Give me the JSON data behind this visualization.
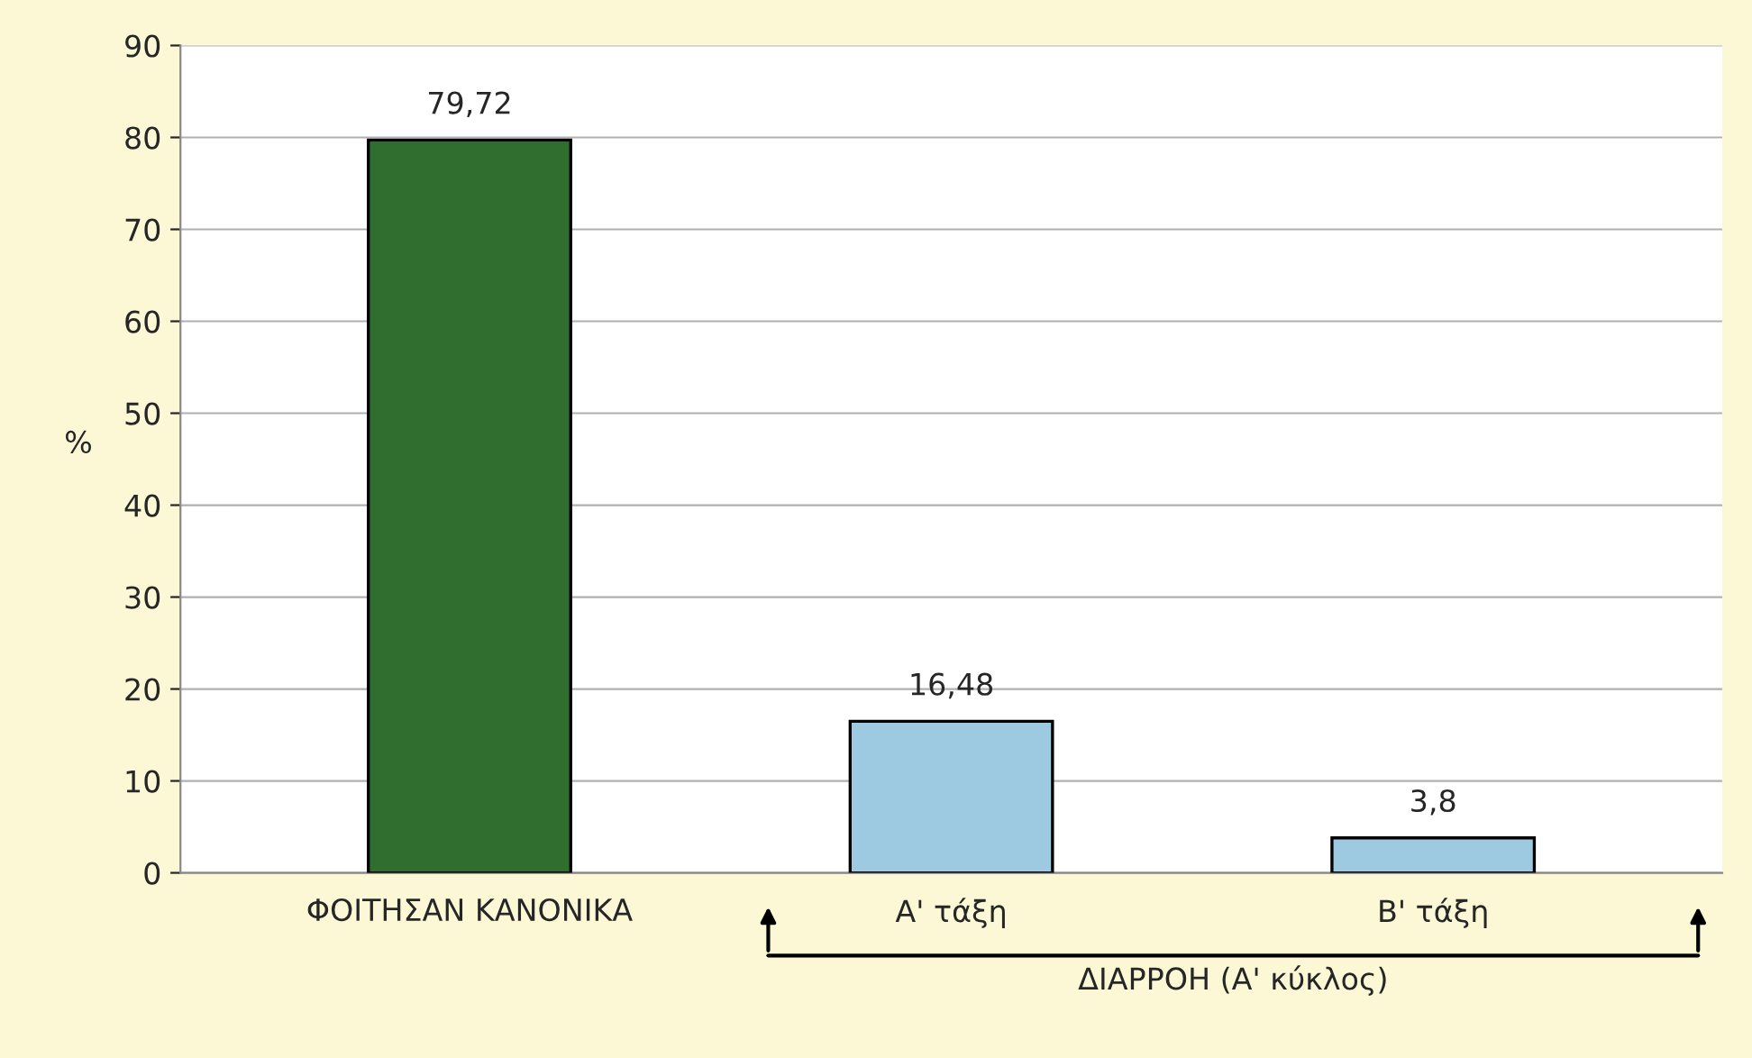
{
  "chart_data": {
    "type": "bar",
    "categories": [
      "ΦΟΙΤΗΣΑΝ ΚΑΝΟΝΙΚΑ",
      "Α' τάξη",
      "Β' τάξη"
    ],
    "values": [
      79.72,
      16.48,
      3.8
    ],
    "colors": [
      "#2f6e2f",
      "#9ecae1",
      "#9ecae1"
    ],
    "value_labels": [
      "79,72",
      "16,48",
      "3,8"
    ],
    "ylabel": "%",
    "ylim": [
      0,
      90
    ],
    "yticks": [
      0,
      10,
      20,
      30,
      40,
      50,
      60,
      70,
      80,
      90
    ],
    "grid": "y",
    "annotations": [
      "ΔΙΑΡΡΟΗ (Α' κύκλος)"
    ]
  }
}
